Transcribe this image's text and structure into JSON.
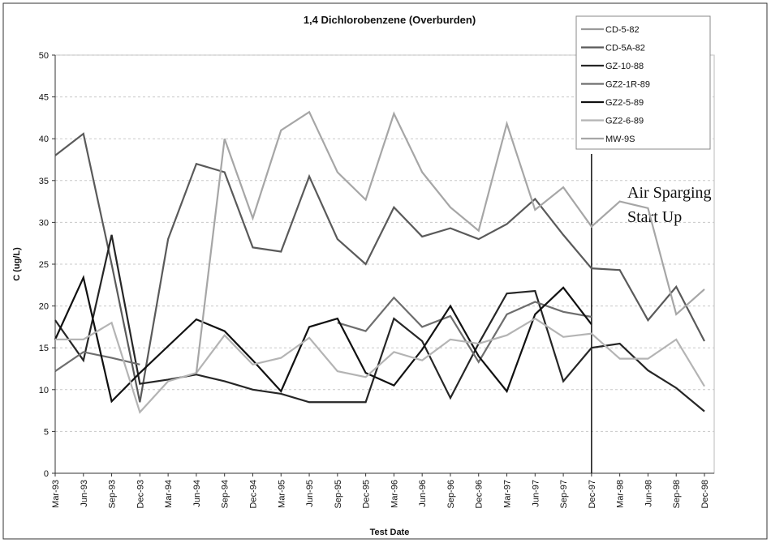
{
  "chart_data": {
    "type": "line",
    "title": "1,4 Dichlorobenzene (Overburden)",
    "x_label": "Test Date",
    "y_label": "C (ug/L)",
    "categories": [
      "Mar-93",
      "Jun-93",
      "Sep-93",
      "Dec-93",
      "Mar-94",
      "Jun-94",
      "Sep-94",
      "Dec-94",
      "Mar-95",
      "Jun-95",
      "Sep-95",
      "Dec-95",
      "Mar-96",
      "Jun-96",
      "Sep-96",
      "Dec-96",
      "Mar-97",
      "Jun-97",
      "Sep-97",
      "Dec-97",
      "Mar-98",
      "Jun-98",
      "Sep-98",
      "Dec-98"
    ],
    "series": [
      {
        "name": "CD-5-82",
        "color": "#9a9a9a",
        "values": [
          null,
          null,
          null,
          null,
          null,
          null,
          null,
          null,
          null,
          null,
          null,
          null,
          null,
          null,
          null,
          null,
          null,
          null,
          null,
          null,
          null,
          null,
          null,
          null
        ]
      },
      {
        "name": "CD-5A-82",
        "color": "#5a5a5a",
        "values": [
          38,
          40.6,
          25,
          8.5,
          28,
          37,
          36,
          27,
          26.5,
          35.5,
          28,
          25,
          31.8,
          28.3,
          29.3,
          28,
          29.8,
          32.8,
          28.5,
          24.5,
          24.3,
          18.3,
          22.3,
          15.8
        ]
      },
      {
        "name": "GZ-10-88",
        "color": "#262626",
        "values": [
          18.3,
          13.5,
          28.5,
          10.7,
          11.2,
          11.8,
          11,
          10,
          9.5,
          8.5,
          8.5,
          8.5,
          18.5,
          15.8,
          9,
          15.5,
          21.5,
          21.8,
          11,
          15,
          15.5,
          12.3,
          10.2,
          7.4
        ]
      },
      {
        "name": "GZ2-1R-89",
        "color": "#6e6e6e",
        "values": [
          12.2,
          14.5,
          13.8,
          13,
          null,
          null,
          null,
          null,
          null,
          null,
          18,
          17,
          21,
          17.5,
          18.8,
          13.3,
          19,
          20.5,
          19.3,
          18.7,
          null,
          null,
          null,
          null
        ]
      },
      {
        "name": "GZ2-5-89",
        "color": "#111111",
        "values": [
          16,
          23.4,
          8.6,
          12,
          15.2,
          18.4,
          17,
          13.5,
          9.8,
          17.5,
          18.5,
          12,
          10.5,
          14.8,
          20,
          14,
          9.8,
          19,
          22.2,
          17.8,
          null,
          null,
          null,
          null
        ]
      },
      {
        "name": "GZ2-6-89",
        "color": "#b4b4b4",
        "values": [
          16,
          16,
          18,
          7.3,
          11,
          12,
          16.5,
          13,
          13.8,
          16.2,
          12.2,
          11.5,
          14.5,
          13.5,
          16,
          15.5,
          16.5,
          18.5,
          16.3,
          16.7,
          13.7,
          13.7,
          16,
          10.4
        ]
      },
      {
        "name": "MW-9S",
        "color": "#a6a6a6",
        "values": [
          null,
          null,
          null,
          null,
          null,
          12,
          40,
          30.5,
          41,
          43.2,
          36,
          32.7,
          43,
          36,
          31.8,
          29,
          41.8,
          31.5,
          34.2,
          29.5,
          32.5,
          31.7,
          19,
          22
        ]
      }
    ],
    "ylim": [
      0,
      50
    ],
    "yticks": [
      0,
      5,
      10,
      15,
      20,
      25,
      30,
      35,
      40,
      45,
      50
    ],
    "grid": true,
    "legend": "top-right",
    "annotation": [
      "Air Sparging",
      "Start Up"
    ]
  }
}
